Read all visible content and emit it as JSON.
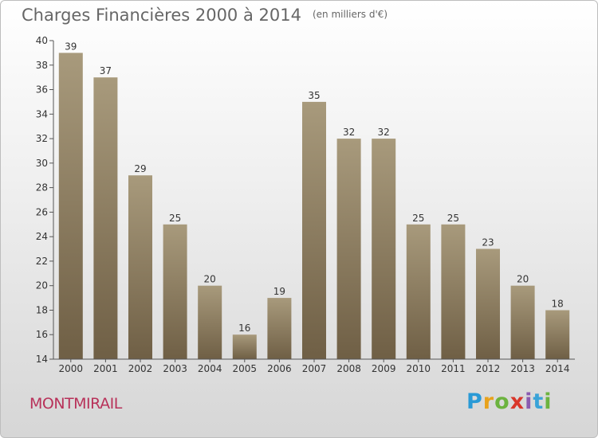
{
  "title": "Charges Financières 2000 à 2014",
  "unit": "(en milliers d'€)",
  "place_name": "MONTMIRAIL",
  "logo_text": "Proxiti",
  "colors": {
    "bar_top": "#a89a7c",
    "bar_bottom": "#6f5f45",
    "place_name": "#b8325a",
    "axis": "#555555"
  },
  "chart_data": {
    "type": "bar",
    "categories": [
      "2000",
      "2001",
      "2002",
      "2003",
      "2004",
      "2005",
      "2006",
      "2007",
      "2008",
      "2009",
      "2010",
      "2011",
      "2012",
      "2013",
      "2014"
    ],
    "values": [
      39,
      37,
      29,
      25,
      20,
      16,
      19,
      35,
      32,
      32,
      25,
      25,
      23,
      20,
      18
    ],
    "title": "Charges Financières 2000 à 2014",
    "subtitle": "(en milliers d'€)",
    "ylim": [
      14,
      40
    ],
    "yticks": [
      14,
      16,
      18,
      20,
      22,
      24,
      26,
      28,
      30,
      32,
      34,
      36,
      38,
      40
    ],
    "grid": false,
    "data_labels": true
  }
}
